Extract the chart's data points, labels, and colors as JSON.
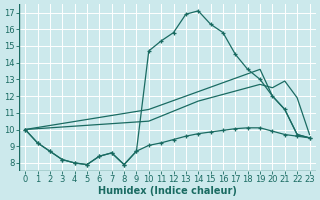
{
  "xlabel": "Humidex (Indice chaleur)",
  "background_color": "#cce9ec",
  "grid_color": "#ddf0f2",
  "line_color": "#1a6b62",
  "xlim": [
    -0.5,
    23.5
  ],
  "ylim": [
    7.5,
    17.5
  ],
  "xticks": [
    0,
    1,
    2,
    3,
    4,
    5,
    6,
    7,
    8,
    9,
    10,
    11,
    12,
    13,
    14,
    15,
    16,
    17,
    18,
    19,
    20,
    21,
    22,
    23
  ],
  "yticks": [
    8,
    9,
    10,
    11,
    12,
    13,
    14,
    15,
    16,
    17
  ],
  "series1_x": [
    0,
    1,
    2,
    3,
    4,
    5,
    6,
    7,
    8,
    9,
    10,
    11,
    12,
    13,
    14,
    15,
    16,
    17,
    18,
    19,
    20,
    21,
    22,
    23
  ],
  "series1_y": [
    10.0,
    9.2,
    8.7,
    8.2,
    8.0,
    7.9,
    8.4,
    8.6,
    7.9,
    8.7,
    14.7,
    15.3,
    15.8,
    16.9,
    17.1,
    16.3,
    15.8,
    14.5,
    13.6,
    13.0,
    12.0,
    11.2,
    9.7,
    9.5
  ],
  "series2_x": [
    0,
    1,
    2,
    3,
    4,
    5,
    6,
    7,
    8,
    9,
    10,
    11,
    12,
    13,
    14,
    15,
    16,
    17,
    18,
    19,
    20,
    21,
    22,
    23
  ],
  "series2_y": [
    10.0,
    9.2,
    8.7,
    8.2,
    8.0,
    7.9,
    8.4,
    8.6,
    7.9,
    8.7,
    9.05,
    9.2,
    9.4,
    9.6,
    9.75,
    9.85,
    9.95,
    10.05,
    10.1,
    10.1,
    9.9,
    9.7,
    9.6,
    9.5
  ],
  "series3_x": [
    0,
    10,
    11,
    12,
    13,
    14,
    15,
    16,
    17,
    18,
    19,
    20,
    21,
    22,
    23
  ],
  "series3_y": [
    10.0,
    10.5,
    10.8,
    11.1,
    11.4,
    11.7,
    11.9,
    12.1,
    12.3,
    12.5,
    12.7,
    12.5,
    12.9,
    11.9,
    9.7
  ],
  "series4_x": [
    0,
    10,
    19,
    20,
    21,
    22,
    23
  ],
  "series4_y": [
    10.0,
    11.2,
    13.6,
    12.0,
    11.2,
    9.7,
    9.5
  ],
  "marker_size": 3,
  "linewidth": 0.9
}
